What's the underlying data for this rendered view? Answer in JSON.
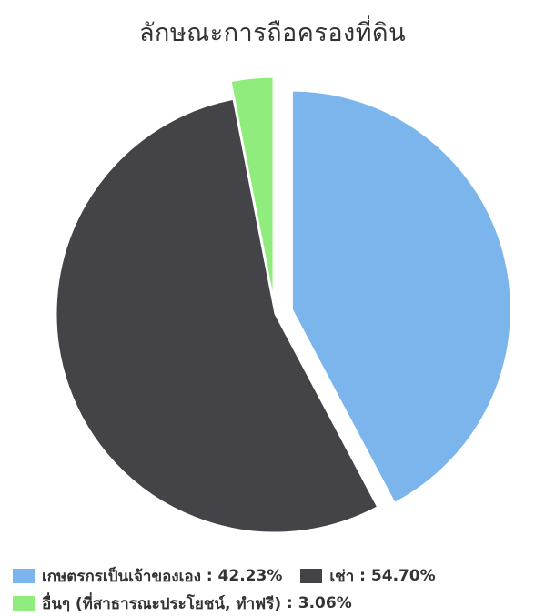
{
  "chart_data": {
    "type": "pie",
    "title": "ลักษณะการถือครองที่ดิน",
    "slices": [
      {
        "label": "เกษตรกรเป็นเจ้าของเอง",
        "value": 42.23,
        "display": "42.23%",
        "color": "#7cb5ec",
        "exploded": true
      },
      {
        "label": "เช่า",
        "value": 54.7,
        "display": "54.70%",
        "color": "#434348",
        "exploded": false
      },
      {
        "label": "อื่นๆ (ที่สาธารณะประโยชน์, ทำฟรี)",
        "value": 3.06,
        "display": "3.06%",
        "color": "#90ed7d",
        "exploded": true
      }
    ],
    "legend_position": "bottom"
  }
}
